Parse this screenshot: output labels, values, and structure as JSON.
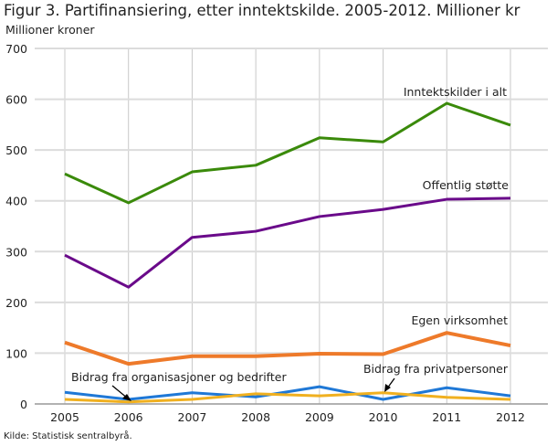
{
  "chart_data": {
    "type": "line",
    "title": "Figur 3. Partifinansiering, etter inntektskilde. 2005-2012. Millioner kr",
    "ylabel": "Millioner kroner",
    "xlabel": "",
    "categories": [
      "2005",
      "2006",
      "2007",
      "2008",
      "2009",
      "2010",
      "2011",
      "2012"
    ],
    "ylim": [
      0,
      700
    ],
    "yticks": [
      0,
      100,
      200,
      300,
      400,
      500,
      600,
      700
    ],
    "grid": true,
    "series": [
      {
        "name": "Inntektskilder i alt",
        "color": "#3a8a0a",
        "values": [
          453,
          396,
          457,
          470,
          524,
          516,
          592,
          549
        ]
      },
      {
        "name": "Offentlig støtte",
        "color": "#6a0a8a",
        "values": [
          293,
          230,
          328,
          340,
          369,
          383,
          403,
          405
        ]
      },
      {
        "name": "Egen virksomhet",
        "color": "#ee7a2a",
        "values": [
          121,
          79,
          94,
          94,
          99,
          98,
          140,
          115
        ]
      },
      {
        "name": "Bidrag fra organisasjoner og bedrifter",
        "color": "#1f78d6",
        "values": [
          23,
          9,
          22,
          14,
          34,
          9,
          32,
          16
        ]
      },
      {
        "name": "Bidrag fra privatpersoner",
        "color": "#f0b020",
        "values": [
          9,
          4,
          9,
          20,
          16,
          22,
          13,
          9
        ]
      }
    ],
    "source": "Kilde: Statistisk sentralbyrå."
  }
}
